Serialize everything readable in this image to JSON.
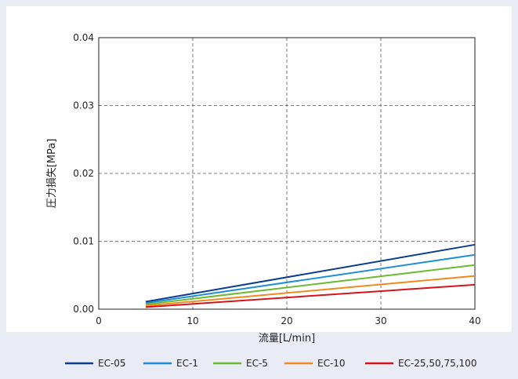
{
  "chart_data": {
    "type": "line",
    "title": "",
    "xlabel": "流量[L/min]",
    "ylabel": "圧力損失[MPa]",
    "xlim": [
      0,
      40
    ],
    "ylim": [
      0,
      0.04
    ],
    "xticks": [
      0,
      10,
      20,
      30,
      40
    ],
    "yticks": [
      0.0,
      0.01,
      0.02,
      0.03,
      0.04
    ],
    "xtick_labels": [
      "0",
      "10",
      "20",
      "30",
      "40"
    ],
    "ytick_labels": [
      "0.00",
      "0.01",
      "0.02",
      "0.03",
      "0.04"
    ],
    "grid": true,
    "legend_position": "bottom",
    "series": [
      {
        "name": "EC-05",
        "color": "#0b3c8f",
        "x": [
          5,
          40
        ],
        "y": [
          0.0011,
          0.0095
        ]
      },
      {
        "name": "EC-1",
        "color": "#1e8fd6",
        "x": [
          5,
          40
        ],
        "y": [
          0.0009,
          0.008
        ]
      },
      {
        "name": "EC-5",
        "color": "#6cba2f",
        "x": [
          5,
          40
        ],
        "y": [
          0.0007,
          0.0065
        ]
      },
      {
        "name": "EC-10",
        "color": "#f08a1e",
        "x": [
          5,
          40
        ],
        "y": [
          0.0005,
          0.0049
        ]
      },
      {
        "name": "EC-25,50,75,100",
        "color": "#d4141d",
        "x": [
          5,
          40
        ],
        "y": [
          0.0003,
          0.0036
        ]
      }
    ]
  }
}
